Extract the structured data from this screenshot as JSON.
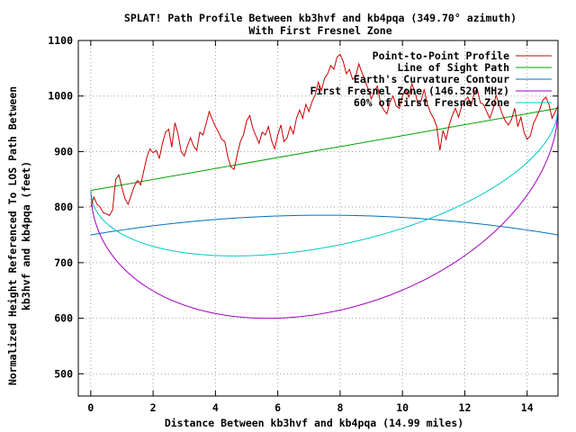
{
  "chart_data": {
    "type": "line",
    "title": "SPLAT! Path Profile Between kb3hvf and kb4pqa (349.70° azimuth)",
    "subtitle": "With First Fresnel Zone",
    "xlabel": "Distance Between kb3hvf and kb4pqa (14.99 miles)",
    "ylabel_line1": "Normalized Height Referenced To LOS Path Between",
    "ylabel_line2": "kb3hvf and kb4pqa (feet)",
    "xlim": [
      -0.4,
      14.99
    ],
    "ylim": [
      460,
      1100
    ],
    "xticks": [
      0,
      2,
      4,
      6,
      8,
      10,
      12,
      14
    ],
    "yticks": [
      500,
      600,
      700,
      800,
      900,
      1000,
      1100
    ],
    "grid": true,
    "legend_position": "top-right",
    "series": [
      {
        "name": "Point-to-Point Profile",
        "color": "#cc0000",
        "x": [
          0,
          0.1,
          0.2,
          0.3,
          0.4,
          0.5,
          0.6,
          0.7,
          0.8,
          0.9,
          1.0,
          1.1,
          1.2,
          1.3,
          1.4,
          1.5,
          1.6,
          1.7,
          1.8,
          1.9,
          2.0,
          2.1,
          2.2,
          2.3,
          2.4,
          2.5,
          2.6,
          2.7,
          2.8,
          2.9,
          3.0,
          3.1,
          3.2,
          3.3,
          3.4,
          3.5,
          3.6,
          3.7,
          3.8,
          3.9,
          4.0,
          4.1,
          4.2,
          4.3,
          4.4,
          4.5,
          4.6,
          4.7,
          4.8,
          4.9,
          5.0,
          5.1,
          5.2,
          5.3,
          5.4,
          5.5,
          5.6,
          5.7,
          5.8,
          5.9,
          6.0,
          6.1,
          6.2,
          6.3,
          6.4,
          6.5,
          6.6,
          6.7,
          6.8,
          6.9,
          7.0,
          7.1,
          7.2,
          7.3,
          7.4,
          7.5,
          7.6,
          7.7,
          7.8,
          7.9,
          8.0,
          8.1,
          8.2,
          8.3,
          8.4,
          8.5,
          8.6,
          8.7,
          8.8,
          8.9,
          9.0,
          9.1,
          9.2,
          9.3,
          9.4,
          9.5,
          9.6,
          9.7,
          9.8,
          9.9,
          10.0,
          10.1,
          10.2,
          10.3,
          10.4,
          10.5,
          10.6,
          10.7,
          10.8,
          10.9,
          11.0,
          11.1,
          11.2,
          11.3,
          11.4,
          11.5,
          11.6,
          11.7,
          11.8,
          11.9,
          12.0,
          12.1,
          12.2,
          12.3,
          12.4,
          12.5,
          12.6,
          12.7,
          12.8,
          12.9,
          13.0,
          13.1,
          13.2,
          13.3,
          13.4,
          13.5,
          13.6,
          13.7,
          13.8,
          13.9,
          14.0,
          14.1,
          14.2,
          14.3,
          14.4,
          14.5,
          14.6,
          14.7,
          14.8,
          14.99
        ],
        "y": [
          800,
          818,
          805,
          800,
          790,
          788,
          785,
          795,
          850,
          858,
          835,
          815,
          805,
          822,
          838,
          848,
          840,
          865,
          890,
          905,
          898,
          902,
          888,
          915,
          935,
          940,
          908,
          952,
          932,
          900,
          892,
          910,
          925,
          910,
          902,
          935,
          930,
          950,
          972,
          958,
          945,
          935,
          922,
          918,
          890,
          872,
          868,
          895,
          918,
          930,
          955,
          965,
          942,
          928,
          915,
          935,
          930,
          945,
          920,
          905,
          930,
          948,
          918,
          925,
          945,
          932,
          960,
          975,
          960,
          985,
          972,
          990,
          1002,
          1025,
          1010,
          1032,
          1040,
          1055,
          1048,
          1070,
          1075,
          1062,
          1040,
          1048,
          1030,
          1035,
          1058,
          1042,
          1028,
          1012,
          995,
          1010,
          1018,
          985,
          975,
          968,
          990,
          1000,
          982,
          978,
          1000,
          1012,
          998,
          1022,
          1008,
          985,
          992,
          1012,
          985,
          970,
          960,
          945,
          902,
          938,
          922,
          948,
          965,
          978,
          962,
          982,
          992,
          998,
          982,
          1005,
          1012,
          988,
          985,
          972,
          960,
          975,
          1002,
          985,
          968,
          955,
          948,
          958,
          978,
          945,
          962,
          935,
          922,
          928,
          950,
          962,
          975,
          992,
          998,
          985,
          960,
          982
        ]
      },
      {
        "name": "Line of Sight Path",
        "color": "#00a000",
        "x": [
          0,
          14.99
        ],
        "y": [
          830,
          978
        ]
      },
      {
        "name": "Earth's Curvature Contour",
        "color": "#0070c0",
        "formula": "750 + 35.5*x*(14.99-x)/56.175"
      },
      {
        "name": "First Fresnel Zone (146.520 MHz)",
        "color": "#a000c0",
        "formula": "LOS - 295*sqrt(x*(14.99-x))/7.495"
      },
      {
        "name": "60% of First Fresnel Zone",
        "color": "#00c8c8",
        "formula": "LOS - 0.6*295*sqrt(x*(14.99-x))/7.495"
      }
    ]
  }
}
